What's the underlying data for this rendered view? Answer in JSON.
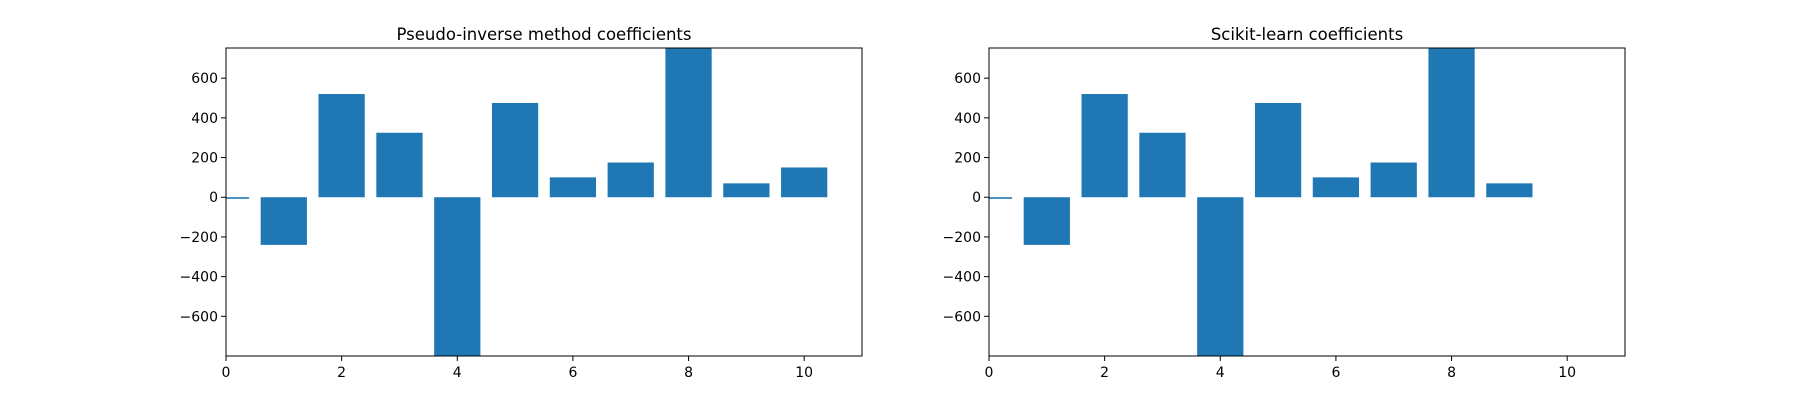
{
  "colors": {
    "bar": "#1f77b4",
    "axis": "#000000",
    "background": "#ffffff"
  },
  "chart_data": [
    {
      "type": "bar",
      "title": "Pseudo-inverse method coefficients",
      "xlabel": "",
      "ylabel": "",
      "x": [
        0,
        1,
        2,
        3,
        4,
        5,
        6,
        7,
        8,
        9,
        10
      ],
      "values": [
        -8,
        -240,
        520,
        325,
        -800,
        475,
        100,
        175,
        752,
        70,
        150
      ],
      "xlim": [
        0,
        11
      ],
      "ylim": [
        -800,
        752
      ],
      "xticks": [
        0,
        2,
        4,
        6,
        8,
        10
      ],
      "yticks": [
        -600,
        -400,
        -200,
        0,
        200,
        400,
        600
      ],
      "ytick_labels": [
        "−600",
        "−400",
        "−200",
        "0",
        "200",
        "400",
        "600"
      ],
      "grid": false,
      "legend": "none"
    },
    {
      "type": "bar",
      "title": "Scikit-learn coefficients",
      "xlabel": "",
      "ylabel": "",
      "x": [
        0,
        1,
        2,
        3,
        4,
        5,
        6,
        7,
        8,
        9
      ],
      "values": [
        -8,
        -240,
        520,
        325,
        -800,
        475,
        100,
        175,
        752,
        70
      ],
      "xlim": [
        0,
        11
      ],
      "ylim": [
        -800,
        752
      ],
      "xticks": [
        0,
        2,
        4,
        6,
        8,
        10
      ],
      "yticks": [
        -600,
        -400,
        -200,
        0,
        200,
        400,
        600
      ],
      "ytick_labels": [
        "−600",
        "−400",
        "−200",
        "0",
        "200",
        "400",
        "600"
      ],
      "grid": false,
      "legend": "none"
    }
  ]
}
